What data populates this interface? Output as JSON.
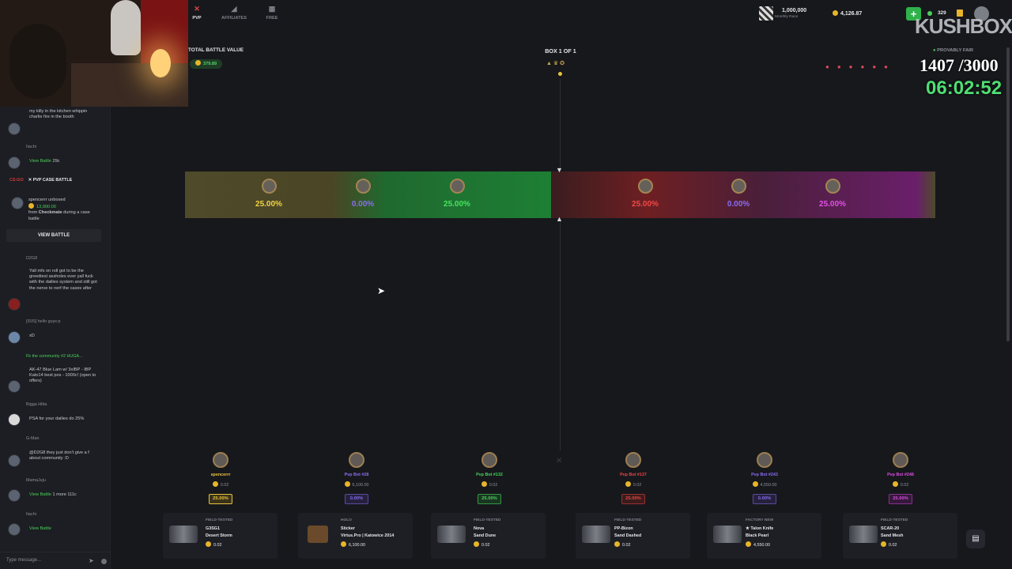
{
  "nav": [
    {
      "label": "PVP",
      "icon": "swords-icon",
      "active": true
    },
    {
      "label": "AFFILIATES",
      "icon": "megaphone-icon",
      "active": false
    },
    {
      "label": "FREE",
      "icon": "gift-icon",
      "active": false
    }
  ],
  "header": {
    "race_amount": "1,000,000",
    "race_label": "Monthly Race",
    "balance": "4,126.87",
    "online_count": "329"
  },
  "overlay": {
    "brand": "KUSHBOX",
    "counter": "1407 /3000",
    "timer": "06:02:52"
  },
  "battle": {
    "total_label": "TOTAL BATTLE VALUE",
    "total_value": "379.89",
    "box_label": "BOX 1 OF 1",
    "provably_fair": "PROVABLY FAIR"
  },
  "strip": [
    {
      "pct": "25.00%",
      "color": "#f1d243"
    },
    {
      "pct": "0.00%",
      "color": "#8a6cf0"
    },
    {
      "pct": "25.00%",
      "color": "#46e25d"
    },
    {
      "pct": "25.00%",
      "color": "#f04848"
    },
    {
      "pct": "0.00%",
      "color": "#8a6cf0"
    },
    {
      "pct": "25.00%",
      "color": "#e34ee8"
    }
  ],
  "players": [
    {
      "name": "spencerrr",
      "value": "0.02",
      "pct": "25.00%",
      "color": "#e8c23d"
    },
    {
      "name": "Pvp Bot #28",
      "value": "6,100.00",
      "pct": "0.00%",
      "color": "#8a6cf0"
    },
    {
      "name": "Pvp Bot #132",
      "value": "0.02",
      "pct": "25.00%",
      "color": "#46d25a"
    },
    {
      "name": "Pvp Bot #137",
      "value": "0.02",
      "pct": "25.00%",
      "color": "#e84545"
    },
    {
      "name": "Pvp Bot #243",
      "value": "4,550.00",
      "pct": "0.00%",
      "color": "#8a6cf0"
    },
    {
      "name": "Pvp Bot #248",
      "value": "0.02",
      "pct": "25.00%",
      "color": "#d94be0"
    }
  ],
  "items": [
    {
      "cond": "FIELD-TESTED",
      "n1": "G3SG1",
      "n2": "Desert Storm",
      "price": "0.02"
    },
    {
      "cond": "HOLO",
      "n1": "Sticker",
      "n2": "Virtus.Pro | Katowice 2014",
      "price": "6,100.00"
    },
    {
      "cond": "FIELD-TESTED",
      "n1": "Nova",
      "n2": "Sand Dune",
      "price": "0.02"
    },
    {
      "cond": "FIELD-TESTED",
      "n1": "PP-Bizon",
      "n2": "Sand Dashed",
      "price": "0.02"
    },
    {
      "cond": "FACTORY NEW",
      "n1": "★ Talon Knife",
      "n2": "Black Pearl",
      "price": "4,550.00"
    },
    {
      "cond": "FIELD-TESTED",
      "n1": "SCAR-20",
      "n2": "Sand Mesh",
      "price": "0.02"
    }
  ],
  "chat": {
    "m1": "my killy in the kitchen whippin charlie fire in the booth",
    "u2": "Itachi",
    "m2a": "View Battle",
    "m2b": "29c",
    "pvp_tag": "CS:GO",
    "pvp_title": "PVP CASE BATTLE",
    "pvp_user": "spencerrr unboxed",
    "pvp_amount": "13,900.00",
    "pvp_from": "from",
    "pvp_case": "Checkmate",
    "pvp_rest": "during a case battle",
    "view_battle": "VIEW BATTLE",
    "u3": "D2G8",
    "m3": "Yall mfs on roll got to be the greediest assholes ever yall fuck with the dailies system and still got the nerve to nerf the cases after",
    "m4": "[ISIS] hello guys:p",
    "m5": "xD",
    "m6": "Fk the community #2 HUGA...",
    "m7": "AK-47 Blue Lam w/ 3xIBP - IBP Kato14 best pos - 1000c! (open to offers)",
    "u8": "Bigga Hitta",
    "m8": "PSA for your dailies do 25%",
    "u9": "G-Man",
    "m9": "@D2G8 they just don't give a f about community :D",
    "u10": "MamaJuju",
    "m10a": "View Battle",
    "m10b": "1 more 111c",
    "u11": "Itachi",
    "m11": "View Battle",
    "input_placeholder": "Type message..."
  }
}
